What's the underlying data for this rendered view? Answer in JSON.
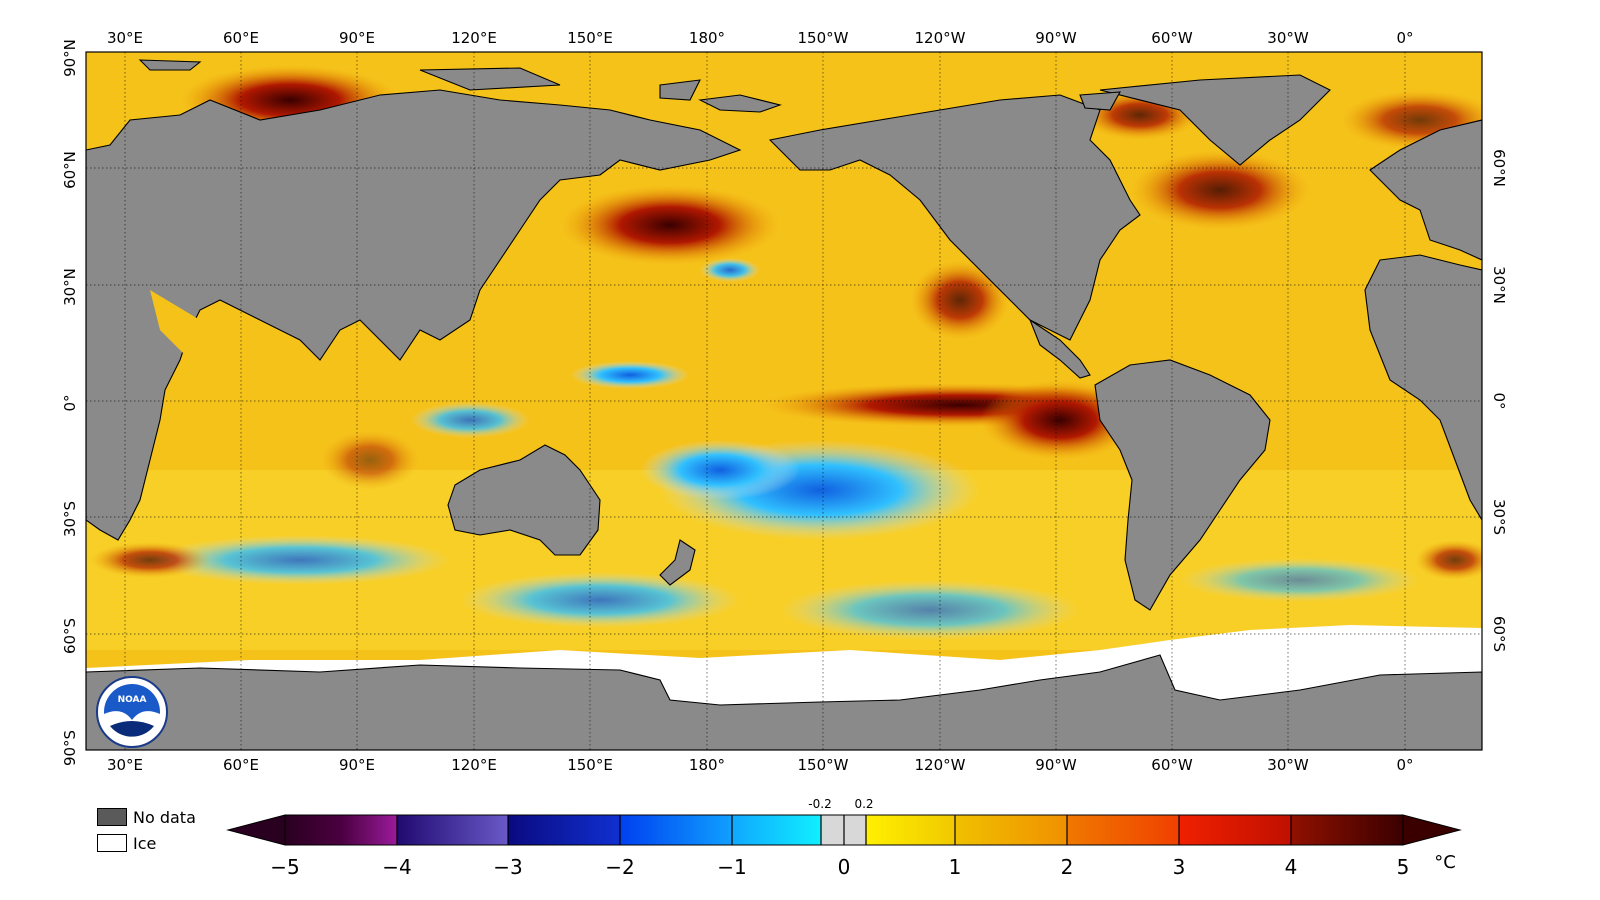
{
  "map": {
    "top_ticks": [
      "30°E",
      "60°E",
      "90°E",
      "120°E",
      "150°E",
      "180°",
      "150°W",
      "120°W",
      "90°W",
      "60°W",
      "30°W",
      "0°"
    ],
    "bottom_ticks": [
      "30°E",
      "60°E",
      "90°E",
      "120°E",
      "150°E",
      "180°",
      "150°W",
      "120°W",
      "90°W",
      "60°W",
      "30°W",
      "0°"
    ],
    "left_ticks": [
      "90°N",
      "60°N",
      "30°N",
      "0°",
      "30°S",
      "60°S",
      "90°S"
    ],
    "right_ticks": [
      "60°N",
      "30°N",
      "0°",
      "30°S",
      "60°S"
    ],
    "colors": {
      "land": "#8a8a8a",
      "ice": "#ffffff",
      "no_data": "#5a5a5a"
    }
  },
  "legend": {
    "no_data": "No data",
    "ice": "Ice"
  },
  "colorbar": {
    "unit": "°C",
    "labels": [
      "−5",
      "−4",
      "−3",
      "−2",
      "−1",
      "0",
      "1",
      "2",
      "3",
      "4",
      "5"
    ],
    "small_labels": [
      "-0.2",
      "0.2"
    ],
    "colors": [
      "#3a0030",
      "#5a0a6a",
      "#9a1a9a",
      "#3a1a8a",
      "#5a4ac0",
      "#10108a",
      "#1030d0",
      "#1080ff",
      "#20c0ff",
      "#d8d8d8",
      "#fff000",
      "#f0c000",
      "#f08000",
      "#f03000",
      "#a01000",
      "#4a0000"
    ]
  },
  "logo": {
    "text": "NOAA"
  }
}
